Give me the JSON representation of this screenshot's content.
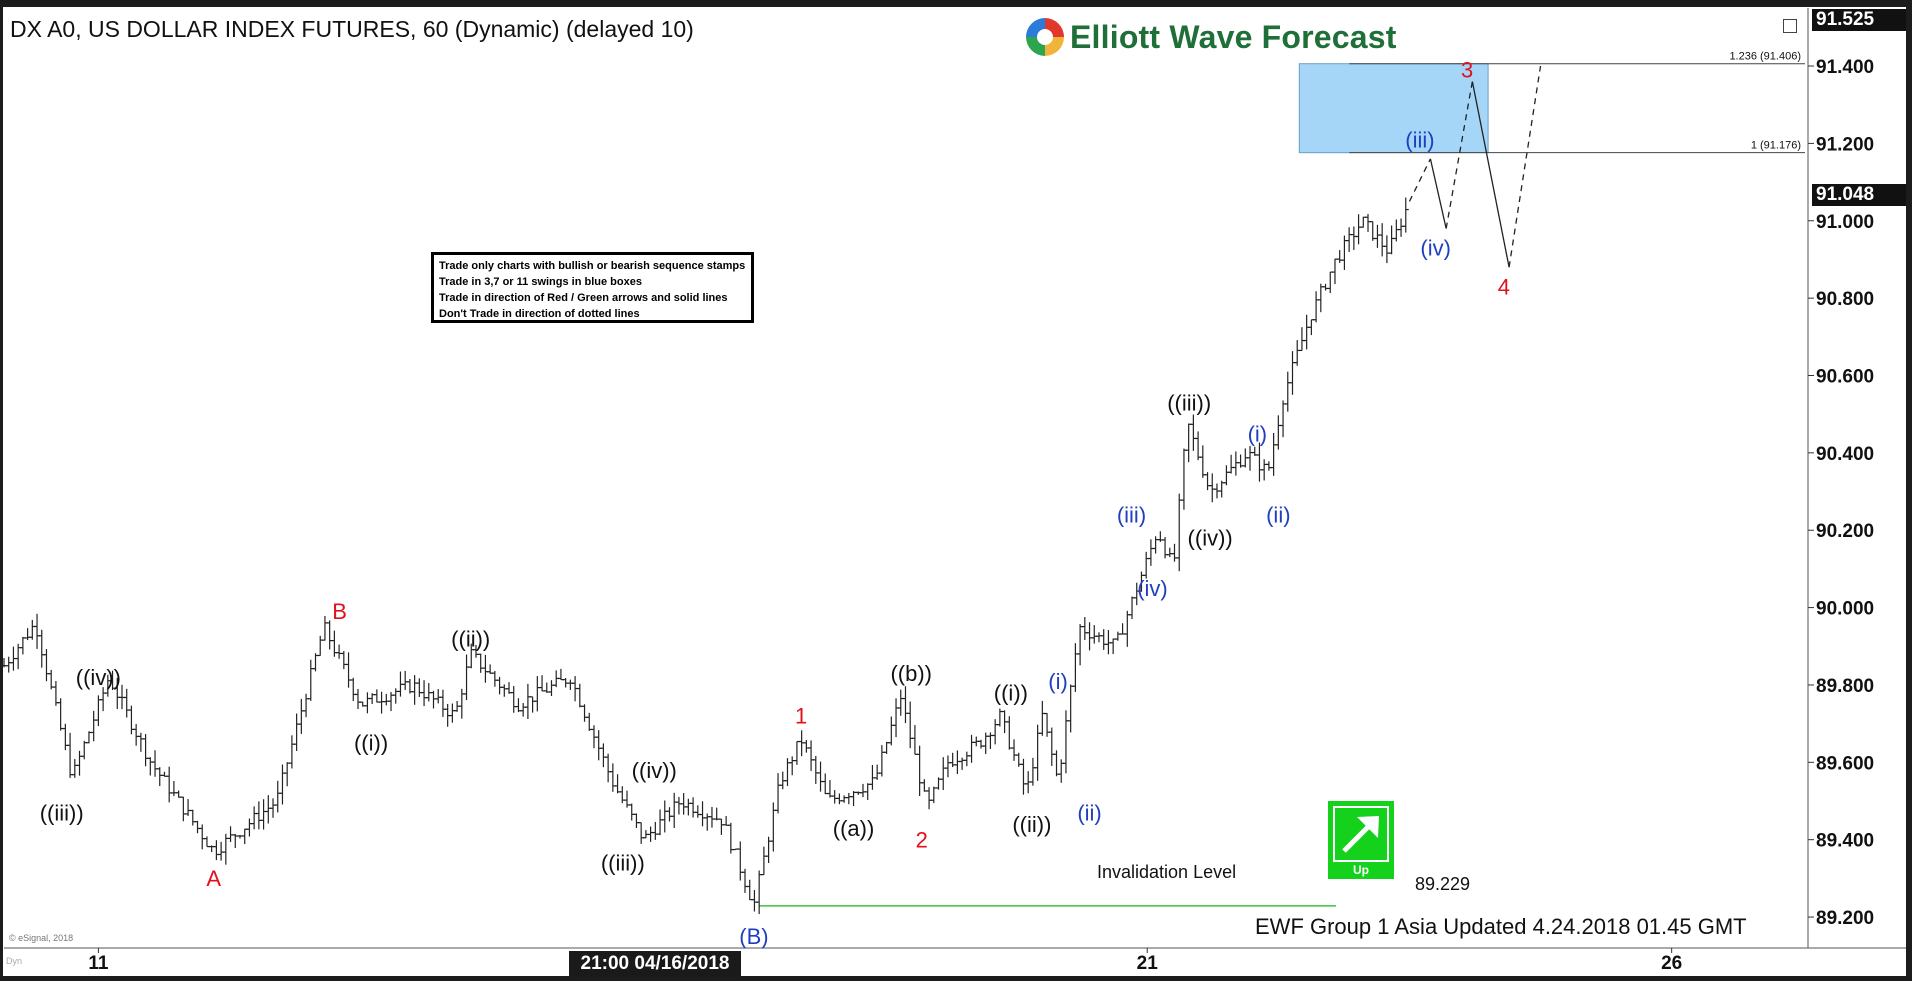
{
  "header": {
    "title": "DX A0, US DOLLAR INDEX FUTURES, 60 (Dynamic) (delayed 10)",
    "logo_text": "Elliott Wave Forecast",
    "top_price": "91.525",
    "last_price": "91.048"
  },
  "rules": [
    "Trade only charts with bullish or bearish sequence stamps",
    "Trade in 3,7 or 11 swings in blue boxes",
    "Trade in direction of Red / Green arrows and solid lines",
    "Don't Trade in direction of dotted lines"
  ],
  "footer": {
    "updated": "EWF Group 1 Asia Updated 4.24.2018 01.45 GMT",
    "copyright": "© eSignal, 2018",
    "dyn": "Dyn",
    "time_flag": "21:00 04/16/2018"
  },
  "invalidation": {
    "label": "Invalidation Level",
    "value": "89.229"
  },
  "up_badge": {
    "label": "Up",
    "color": "#14d21c"
  },
  "colors": {
    "red": "#e0111b",
    "blue": "#1f3fbf",
    "black": "#111111",
    "target_box": "#a6d6f7",
    "invalidation_line": "#3fbf3f"
  },
  "chart_data": {
    "type": "ohlc",
    "timeframe": "60",
    "ylim": [
      89.12,
      91.55
    ],
    "yticks": [
      89.2,
      89.4,
      89.6,
      89.8,
      90.0,
      90.2,
      90.4,
      90.6,
      90.8,
      91.0,
      91.2,
      91.4
    ],
    "ytick_labels": [
      "89.200",
      "89.400",
      "89.600",
      "89.800",
      "90.000",
      "90.200",
      "90.400",
      "90.600",
      "90.800",
      "91.000",
      "91.200",
      "91.400"
    ],
    "xrange_days": [
      10.1,
      27.3
    ],
    "xticks": [
      {
        "day": 11,
        "label": "11"
      },
      {
        "day": 21,
        "label": "21"
      },
      {
        "day": 26,
        "label": "26"
      }
    ],
    "fib_levels": [
      {
        "label": "1.236 (91.406)",
        "value": 91.406
      },
      {
        "label": "1 (91.176)",
        "value": 91.176
      }
    ],
    "target_box": {
      "x_days": [
        22.45,
        24.25
      ],
      "y": [
        91.176,
        91.406
      ]
    },
    "price_path": [
      [
        10.1,
        89.85
      ],
      [
        10.4,
        89.96
      ],
      [
        10.75,
        89.56
      ],
      [
        11.1,
        89.82
      ],
      [
        11.5,
        89.6
      ],
      [
        12.1,
        89.37
      ],
      [
        12.7,
        89.5
      ],
      [
        13.15,
        89.95
      ],
      [
        13.5,
        89.75
      ],
      [
        14.0,
        89.8
      ],
      [
        14.4,
        89.72
      ],
      [
        14.55,
        89.88
      ],
      [
        15.0,
        89.75
      ],
      [
        15.5,
        89.82
      ],
      [
        15.9,
        89.55
      ],
      [
        16.2,
        89.4
      ],
      [
        16.55,
        89.5
      ],
      [
        16.95,
        89.45
      ],
      [
        17.25,
        89.23
      ],
      [
        17.5,
        89.55
      ],
      [
        17.7,
        89.66
      ],
      [
        17.95,
        89.5
      ],
      [
        18.4,
        89.55
      ],
      [
        18.65,
        89.77
      ],
      [
        18.9,
        89.48
      ],
      [
        19.1,
        89.6
      ],
      [
        19.4,
        89.65
      ],
      [
        19.6,
        89.72
      ],
      [
        19.85,
        89.52
      ],
      [
        20.0,
        89.72
      ],
      [
        20.15,
        89.55
      ],
      [
        20.35,
        89.95
      ],
      [
        20.7,
        89.9
      ],
      [
        20.9,
        90.05
      ],
      [
        21.1,
        90.2
      ],
      [
        21.25,
        90.1
      ],
      [
        21.38,
        90.48
      ],
      [
        21.6,
        90.3
      ],
      [
        21.95,
        90.4
      ],
      [
        22.15,
        90.35
      ],
      [
        22.3,
        90.55
      ],
      [
        22.55,
        90.75
      ],
      [
        22.8,
        90.9
      ],
      [
        23.05,
        91.0
      ],
      [
        23.3,
        90.92
      ],
      [
        23.5,
        91.05
      ]
    ],
    "projection": [
      [
        23.5,
        91.05
      ],
      [
        23.7,
        91.16
      ],
      [
        23.85,
        90.98
      ],
      [
        24.1,
        91.36
      ],
      [
        24.45,
        90.88
      ],
      [
        24.75,
        91.4
      ]
    ],
    "invalidation": {
      "value": 89.229,
      "from_day": 17.3,
      "to_day": 22.8
    },
    "wave_labels": [
      {
        "text": "((iii))",
        "day": 10.65,
        "price": 89.45,
        "color": "black"
      },
      {
        "text": "((iv))",
        "day": 11.0,
        "price": 89.8,
        "color": "black"
      },
      {
        "text": "A",
        "day": 12.1,
        "price": 89.28,
        "color": "red"
      },
      {
        "text": "B",
        "day": 13.3,
        "price": 89.97,
        "color": "red"
      },
      {
        "text": "((i))",
        "day": 13.6,
        "price": 89.63,
        "color": "black"
      },
      {
        "text": "((ii))",
        "day": 14.55,
        "price": 89.9,
        "color": "black"
      },
      {
        "text": "((iii))",
        "day": 16.0,
        "price": 89.32,
        "color": "black"
      },
      {
        "text": "((iv))",
        "day": 16.3,
        "price": 89.56,
        "color": "black"
      },
      {
        "text": "(B)",
        "day": 17.25,
        "price": 89.13,
        "color": "blue"
      },
      {
        "text": "1",
        "day": 17.7,
        "price": 89.7,
        "color": "red"
      },
      {
        "text": "((a))",
        "day": 18.2,
        "price": 89.41,
        "color": "black"
      },
      {
        "text": "((b))",
        "day": 18.75,
        "price": 89.81,
        "color": "black"
      },
      {
        "text": "2",
        "day": 18.85,
        "price": 89.38,
        "color": "red"
      },
      {
        "text": "((i))",
        "day": 19.7,
        "price": 89.76,
        "color": "black"
      },
      {
        "text": "((ii))",
        "day": 19.9,
        "price": 89.42,
        "color": "black"
      },
      {
        "text": "(i)",
        "day": 20.15,
        "price": 89.79,
        "color": "blue"
      },
      {
        "text": "(ii)",
        "day": 20.45,
        "price": 89.45,
        "color": "blue"
      },
      {
        "text": "(iii)",
        "day": 20.85,
        "price": 90.22,
        "color": "blue"
      },
      {
        "text": "(iv)",
        "day": 21.05,
        "price": 90.03,
        "color": "blue"
      },
      {
        "text": "((iii))",
        "day": 21.4,
        "price": 90.51,
        "color": "black"
      },
      {
        "text": "((iv))",
        "day": 21.6,
        "price": 90.16,
        "color": "black"
      },
      {
        "text": "(i)",
        "day": 22.05,
        "price": 90.43,
        "color": "blue"
      },
      {
        "text": "(ii)",
        "day": 22.25,
        "price": 90.22,
        "color": "blue"
      },
      {
        "text": "(iii)",
        "day": 23.6,
        "price": 91.19,
        "color": "blue"
      },
      {
        "text": "(iv)",
        "day": 23.75,
        "price": 90.91,
        "color": "blue"
      },
      {
        "text": "3",
        "day": 24.05,
        "price": 91.37,
        "color": "red"
      },
      {
        "text": "4",
        "day": 24.4,
        "price": 90.81,
        "color": "red"
      }
    ]
  }
}
